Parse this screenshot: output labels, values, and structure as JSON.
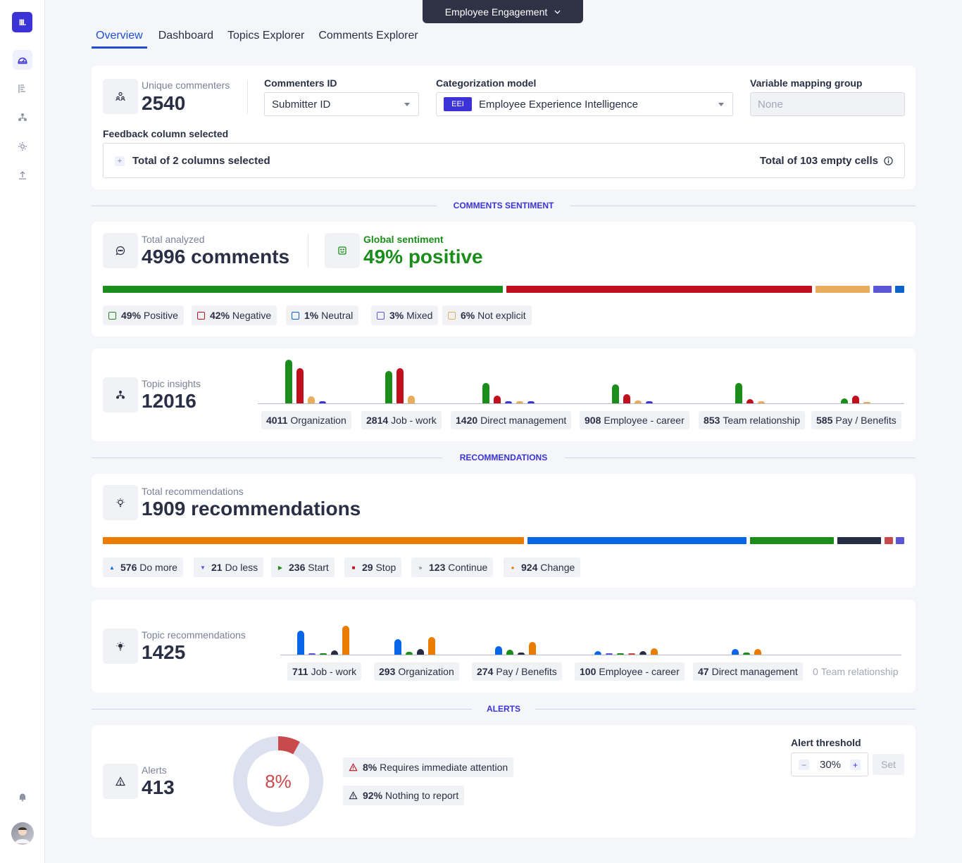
{
  "app": {
    "switcher_label": "Employee Engagement",
    "logo_text": "III."
  },
  "tabs": [
    "Overview",
    "Dashboard",
    "Topics Explorer",
    "Comments Explorer"
  ],
  "config": {
    "unique_commenters_label": "Unique commenters",
    "unique_commenters_value": "2540",
    "commenters_id_label": "Commenters ID",
    "commenters_id_value": "Submitter ID",
    "categorization_label": "Categorization model",
    "categorization_badge": "EEI",
    "categorization_value": "Employee Experience Intelligence",
    "variable_mapping_label": "Variable mapping group",
    "variable_mapping_placeholder": "None",
    "feedback_column_label": "Feedback column selected",
    "feedback_columns_text": "Total of 2 columns selected",
    "empty_cells_text": "Total of 103 empty cells"
  },
  "sections": {
    "sentiment": "COMMENTS SENTIMENT",
    "recommendations": "RECOMMENDATIONS",
    "alerts": "ALERTS"
  },
  "sentiment": {
    "total_label": "Total analyzed",
    "total_value": "4996 comments",
    "global_label": "Global sentiment",
    "global_value": "49% positive",
    "bar": [
      {
        "name": "Positive",
        "fraction": 0.49,
        "color": "#1a8d1a"
      },
      {
        "name": "Negative",
        "fraction": 0.42,
        "color": "#c10f1d"
      },
      {
        "name": "Neutral",
        "fraction": 0.01,
        "color": "#0b62c9"
      },
      {
        "name": "Mixed",
        "fraction": 0.03,
        "color": "#5b56d6"
      },
      {
        "name": "Not explicit",
        "fraction": 0.06,
        "color": "#e9ac5a"
      }
    ],
    "pills": [
      {
        "pct": "49%",
        "label": "Positive",
        "color": "#1a8d1a"
      },
      {
        "pct": "42%",
        "label": "Negative",
        "color": "#c10f1d"
      },
      {
        "pct": "1%",
        "label": "Neutral",
        "color": "#0b62c9"
      },
      {
        "pct": "3%",
        "label": "Mixed",
        "color": "#5b56d6"
      },
      {
        "pct": "6%",
        "label": "Not explicit",
        "color": "#e9ac5a"
      }
    ]
  },
  "topic_insights": {
    "label": "Topic insights",
    "value": "12016",
    "topics": [
      {
        "count": "4011",
        "name": "Organization"
      },
      {
        "count": "2814",
        "name": "Job - work"
      },
      {
        "count": "1420",
        "name": "Direct management"
      },
      {
        "count": "908",
        "name": "Employee - career"
      },
      {
        "count": "853",
        "name": "Team relationship"
      },
      {
        "count": "585",
        "name": "Pay / Benefits"
      }
    ]
  },
  "recommendations": {
    "total_label": "Total recommendations",
    "total_value": "1909 recommendations",
    "bar_colors": [
      "#ea7c00",
      "#0a66e8",
      "#1a8d1a",
      "#272c43",
      "#c9494d",
      "#5b56d6"
    ],
    "pills": [
      {
        "count": "576",
        "label": "Do more",
        "icon": "triangle-up-icon",
        "color": "#0a66e8"
      },
      {
        "count": "21",
        "label": "Do less",
        "icon": "triangle-down-icon",
        "color": "#5b56d6"
      },
      {
        "count": "236",
        "label": "Start",
        "icon": "play-icon",
        "color": "#1a8d1a"
      },
      {
        "count": "29",
        "label": "Stop",
        "icon": "stop-icon",
        "color": "#c10f1d"
      },
      {
        "count": "123",
        "label": "Continue",
        "icon": "fast-forward-icon",
        "color": "#272c43"
      },
      {
        "count": "924",
        "label": "Change",
        "icon": "dot-icon",
        "color": "#ea7c00"
      }
    ]
  },
  "topic_recommendations": {
    "label": "Topic recommendations",
    "value": "1425",
    "topics": [
      {
        "count": "711",
        "name": "Job - work"
      },
      {
        "count": "293",
        "name": "Organization"
      },
      {
        "count": "274",
        "name": "Pay / Benefits"
      },
      {
        "count": "100",
        "name": "Employee - career"
      },
      {
        "count": "47",
        "name": "Direct management"
      },
      {
        "count": "0",
        "name": "Team relationship"
      }
    ]
  },
  "alerts": {
    "label": "Alerts",
    "value": "413",
    "donut_text": "8%",
    "donut_fraction": 0.08,
    "requires_pct": "8%",
    "requires_label": "Requires immediate attention",
    "nothing_pct": "92%",
    "nothing_label": "Nothing to report",
    "threshold_label": "Alert threshold",
    "threshold_value": "30%",
    "set_label": "Set"
  }
}
